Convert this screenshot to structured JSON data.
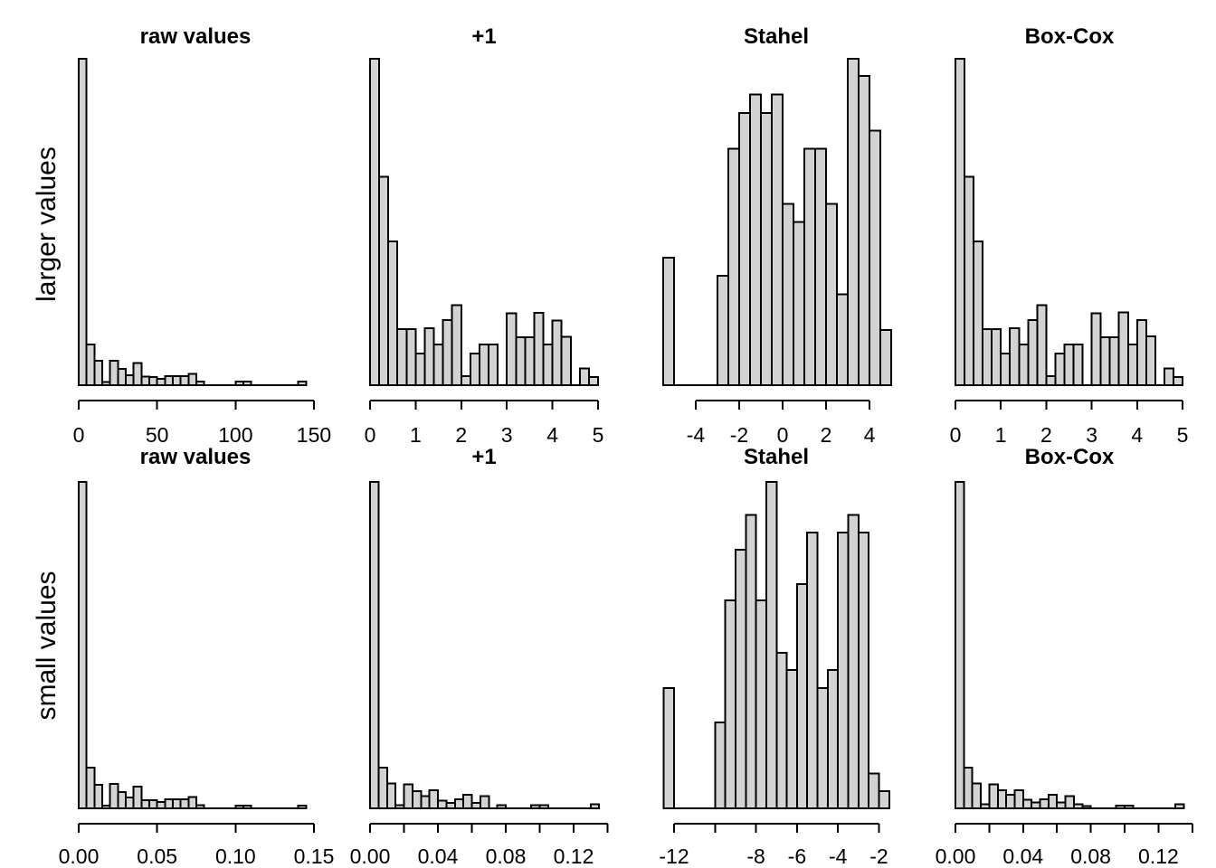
{
  "figure": {
    "background": "#FFFFFF",
    "bar_fill": "#D3D3D3",
    "bar_stroke": "#000000",
    "text_color": "#000000"
  },
  "rows": [
    {
      "label": "larger values"
    },
    {
      "label": "small values"
    }
  ],
  "chart_data": {
    "type": "bar",
    "subtype": "histogram-grid",
    "description": "2x4 grid of histograms comparing raw values and transformed values (+1 = log(x+1), Stahel, Box-Cox) for larger-valued (top row) and small-valued (bottom row) data. No y axes are drawn; bar heights are relative frequencies normalized so the tallest bar in each panel equals 1.",
    "y_unit": "relative frequency (panel max = 1)",
    "grid": {
      "rows": 2,
      "cols": 4
    },
    "panels": [
      {
        "row": 0,
        "col": 0,
        "title": "raw values",
        "bin_start": 0,
        "bin_width": 5,
        "x_ticks": [
          0,
          50,
          100,
          150
        ],
        "x_tick_labels": [
          "0",
          "50",
          "100",
          "150"
        ],
        "rel_heights": [
          1.0,
          0.124,
          0.075,
          0.01,
          0.075,
          0.05,
          0.031,
          0.068,
          0.026,
          0.025,
          0.02,
          0.028,
          0.028,
          0.028,
          0.035,
          0.011,
          0,
          0,
          0,
          0,
          0.011,
          0.011,
          0,
          0,
          0,
          0,
          0,
          0,
          0.011
        ]
      },
      {
        "row": 0,
        "col": 1,
        "title": "+1",
        "bin_start": 0,
        "bin_width": 0.2,
        "x_ticks": [
          0,
          1,
          2,
          3,
          4,
          5
        ],
        "x_tick_labels": [
          "0",
          "1",
          "2",
          "3",
          "4",
          "5"
        ],
        "rel_heights": [
          1.0,
          0.638,
          0.44,
          0.172,
          0.172,
          0.097,
          0.174,
          0.124,
          0.199,
          0.245,
          0.028,
          0.097,
          0.124,
          0.124,
          0,
          0.22,
          0.147,
          0.147,
          0.222,
          0.124,
          0.198,
          0.148,
          0,
          0.051,
          0.025
        ]
      },
      {
        "row": 0,
        "col": 2,
        "title": "Stahel",
        "bin_start": -5.5,
        "bin_width": 0.5,
        "x_ticks": [
          -4,
          -2,
          0,
          2,
          4
        ],
        "x_tick_labels": [
          "-4",
          "-2",
          "0",
          "2",
          "4"
        ],
        "rel_heights": [
          0.39,
          0,
          0,
          0,
          0,
          0.335,
          0.724,
          0.834,
          0.89,
          0.834,
          0.89,
          0.556,
          0.5,
          0.724,
          0.724,
          0.556,
          0.279,
          1.0,
          0.947,
          0.78,
          0.169
        ]
      },
      {
        "row": 0,
        "col": 3,
        "title": "Box-Cox",
        "bin_start": 0,
        "bin_width": 0.2,
        "x_ticks": [
          0,
          1,
          2,
          3,
          4,
          5
        ],
        "x_tick_labels": [
          "0",
          "1",
          "2",
          "3",
          "4",
          "5"
        ],
        "rel_heights": [
          1.0,
          0.638,
          0.44,
          0.172,
          0.172,
          0.097,
          0.174,
          0.124,
          0.199,
          0.245,
          0.028,
          0.097,
          0.124,
          0.124,
          0,
          0.22,
          0.147,
          0.147,
          0.223,
          0.124,
          0.199,
          0.149,
          0,
          0.051,
          0.025
        ]
      },
      {
        "row": 1,
        "col": 0,
        "title": "raw values",
        "bin_start": 0,
        "bin_width": 0.005,
        "x_ticks": [
          0,
          0.05,
          0.1,
          0.15
        ],
        "x_tick_labels": [
          "0.00",
          "0.05",
          "0.10",
          "0.15"
        ],
        "rel_heights": [
          1.0,
          0.124,
          0.072,
          0.008,
          0.075,
          0.05,
          0.033,
          0.066,
          0.025,
          0.025,
          0.019,
          0.028,
          0.028,
          0.028,
          0.035,
          0.01,
          0,
          0,
          0,
          0,
          0.009,
          0.009,
          0,
          0,
          0,
          0,
          0,
          0,
          0.009
        ]
      },
      {
        "row": 1,
        "col": 1,
        "title": "+1",
        "bin_start": 0,
        "bin_width": 0.005,
        "x_ticks": [
          0,
          0.02,
          0.04,
          0.06,
          0.08,
          0.1,
          0.12,
          0.14
        ],
        "x_tick_labels": [
          "0.00",
          "",
          "0.04",
          "",
          "0.08",
          "",
          "0.12",
          ""
        ],
        "rel_heights": [
          1.0,
          0.124,
          0.076,
          0.01,
          0.074,
          0.053,
          0.037,
          0.056,
          0.023,
          0.017,
          0.028,
          0.042,
          0.017,
          0.037,
          0,
          0.01,
          0,
          0,
          0,
          0.01,
          0.01,
          0,
          0,
          0,
          0,
          0,
          0.012
        ]
      },
      {
        "row": 1,
        "col": 2,
        "title": "Stahel",
        "bin_start": -12.5,
        "bin_width": 0.5,
        "x_ticks": [
          -12,
          -10,
          -8,
          -6,
          -4,
          -2
        ],
        "x_tick_labels": [
          "-12",
          "",
          "-8",
          "-6",
          "-4",
          "-2"
        ],
        "rel_heights": [
          0.368,
          0,
          0,
          0,
          0,
          0.263,
          0.637,
          0.792,
          0.899,
          0.637,
          1.0,
          0.477,
          0.424,
          0.687,
          0.845,
          0.368,
          0.424,
          0.845,
          0.899,
          0.845,
          0.107,
          0.053
        ]
      },
      {
        "row": 1,
        "col": 3,
        "title": "Box-Cox",
        "bin_start": 0,
        "bin_width": 0.005,
        "x_ticks": [
          0,
          0.02,
          0.04,
          0.06,
          0.08,
          0.1,
          0.12,
          0.14
        ],
        "x_tick_labels": [
          "0.00",
          "",
          "0.04",
          "",
          "0.08",
          "",
          "0.12",
          ""
        ],
        "rel_heights": [
          1.0,
          0.124,
          0.076,
          0.012,
          0.074,
          0.056,
          0.042,
          0.056,
          0.026,
          0.018,
          0.028,
          0.042,
          0.018,
          0.037,
          0.012,
          0.007,
          0,
          0,
          0,
          0.008,
          0.008,
          0,
          0,
          0,
          0,
          0,
          0.012
        ]
      }
    ]
  }
}
